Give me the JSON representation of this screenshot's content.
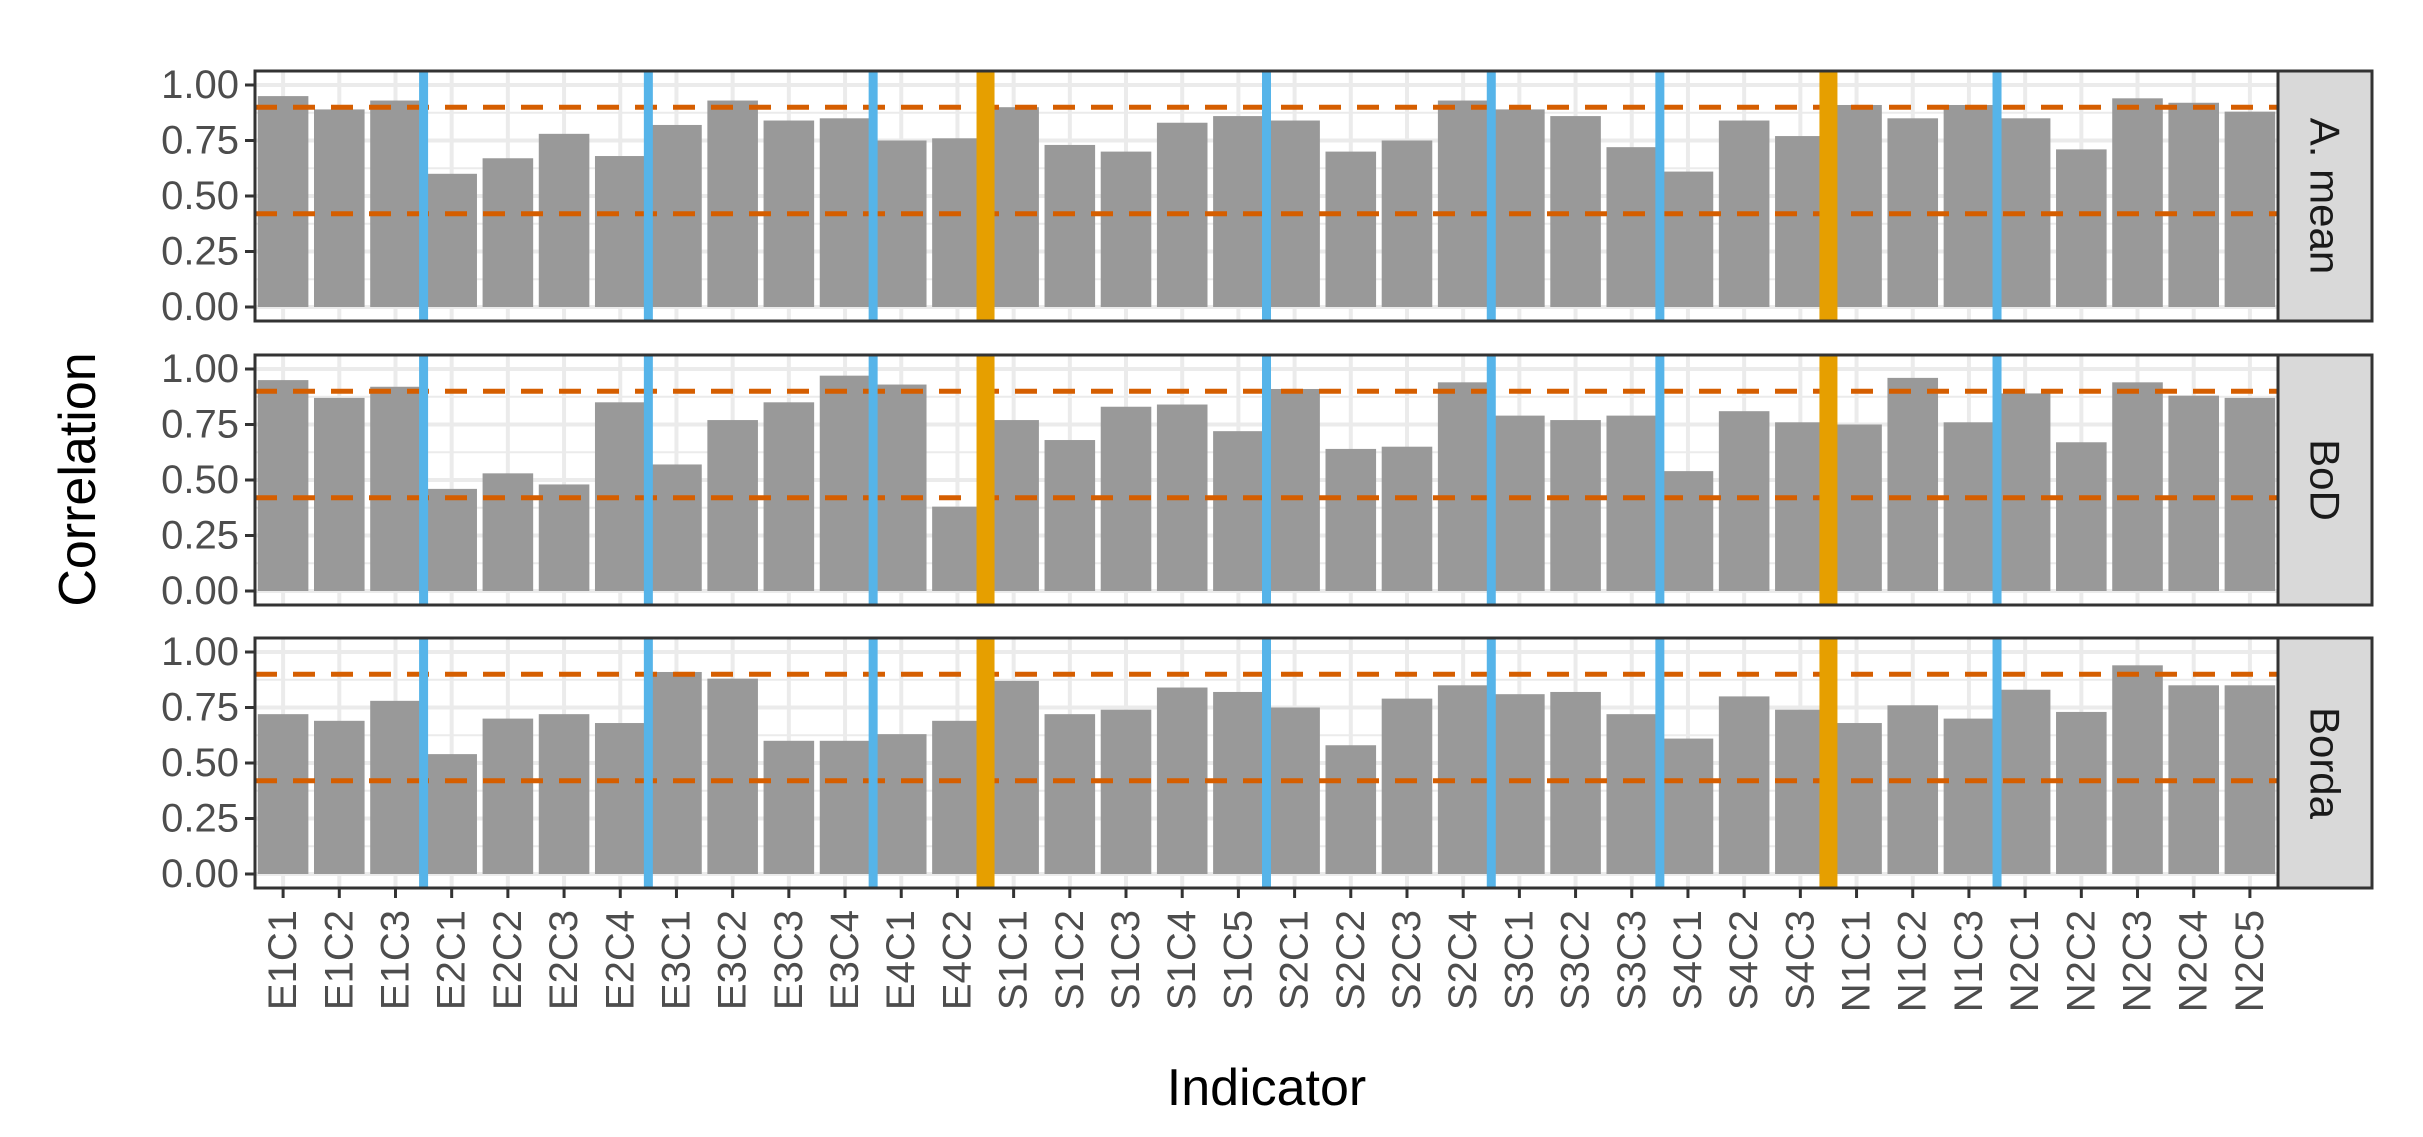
{
  "chart_data": {
    "type": "bar",
    "xlabel": "Indicator",
    "ylabel": "Correlation",
    "ylim": [
      0,
      1
    ],
    "yticks": [
      "0.00",
      "0.25",
      "0.50",
      "0.75",
      "1.00"
    ],
    "ytick_values": [
      0,
      0.25,
      0.5,
      0.75,
      1.0
    ],
    "grid": true,
    "categories": [
      "E1C1",
      "E1C2",
      "E1C3",
      "E2C1",
      "E2C2",
      "E2C3",
      "E2C4",
      "E3C1",
      "E3C2",
      "E3C3",
      "E3C4",
      "E4C1",
      "E4C2",
      "S1C1",
      "S1C2",
      "S1C3",
      "S1C4",
      "S1C5",
      "S2C1",
      "S2C2",
      "S2C3",
      "S2C4",
      "S3C1",
      "S3C2",
      "S3C3",
      "S4C1",
      "S4C2",
      "S4C3",
      "N1C1",
      "N1C2",
      "N1C3",
      "N2C1",
      "N2C2",
      "N2C3",
      "N2C4",
      "N2C5"
    ],
    "panels": [
      {
        "name": "A. mean",
        "values": [
          0.95,
          0.89,
          0.93,
          0.6,
          0.67,
          0.78,
          0.68,
          0.82,
          0.93,
          0.84,
          0.85,
          0.75,
          0.76,
          0.9,
          0.73,
          0.7,
          0.83,
          0.86,
          0.84,
          0.7,
          0.75,
          0.93,
          0.89,
          0.86,
          0.72,
          0.61,
          0.84,
          0.77,
          0.91,
          0.85,
          0.91,
          0.85,
          0.71,
          0.94,
          0.92,
          0.88
        ],
        "upper_threshold": 0.9,
        "lower_threshold": 0.42
      },
      {
        "name": "BoD",
        "values": [
          0.95,
          0.87,
          0.92,
          0.46,
          0.53,
          0.48,
          0.85,
          0.57,
          0.77,
          0.85,
          0.97,
          0.93,
          0.38,
          0.77,
          0.68,
          0.83,
          0.84,
          0.72,
          0.91,
          0.64,
          0.65,
          0.94,
          0.79,
          0.77,
          0.79,
          0.54,
          0.81,
          0.76,
          0.75,
          0.96,
          0.76,
          0.89,
          0.67,
          0.94,
          0.88,
          0.87
        ],
        "upper_threshold": 0.9,
        "lower_threshold": 0.42
      },
      {
        "name": "Borda",
        "values": [
          0.72,
          0.69,
          0.78,
          0.54,
          0.7,
          0.72,
          0.68,
          0.91,
          0.88,
          0.6,
          0.6,
          0.63,
          0.69,
          0.87,
          0.72,
          0.74,
          0.84,
          0.82,
          0.75,
          0.58,
          0.79,
          0.85,
          0.81,
          0.82,
          0.72,
          0.61,
          0.8,
          0.74,
          0.68,
          0.76,
          0.7,
          0.83,
          0.73,
          0.94,
          0.85,
          0.85
        ],
        "upper_threshold": 0.9,
        "lower_threshold": 0.42
      }
    ],
    "blue_marked_indicators": [
      "E1C3",
      "E2C4",
      "E3C4",
      "S1C5",
      "S2C4",
      "S3C3",
      "N1C3"
    ],
    "orange_marked_indicators": [
      "E4C2",
      "S4C3"
    ],
    "colors": {
      "bar": "#999999",
      "threshold_line": "#D55E00",
      "blue_marker": "#56B4E9",
      "orange_marker": "#E69F00",
      "grid": "#ebebeb",
      "panel_border": "#333333",
      "strip_background": "#d9d9d9",
      "tick_text": "#4d4d4d"
    }
  }
}
